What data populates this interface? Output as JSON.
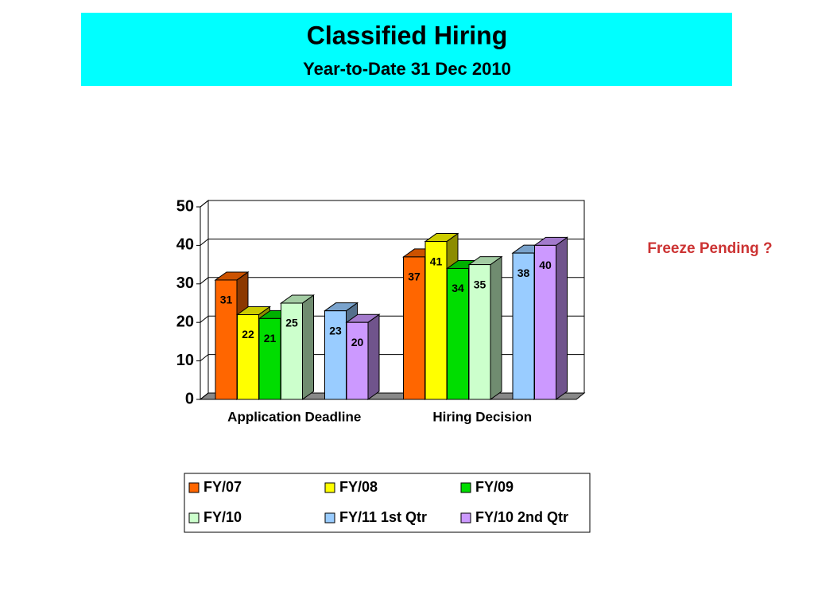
{
  "chart_data": {
    "type": "bar3d",
    "title": "Classified Hiring",
    "subtitle": "Year-to-Date 31 Dec 2010",
    "annotation": "Freeze Pending ?",
    "categories": [
      "Application Deadline",
      "Hiring Decision"
    ],
    "series": [
      {
        "name": "FY/07",
        "color": "#ff6600",
        "values": [
          31,
          37
        ]
      },
      {
        "name": "FY/08",
        "color": "#ffff00",
        "values": [
          22,
          41
        ]
      },
      {
        "name": "FY/09",
        "color": "#00dd00",
        "values": [
          21,
          34
        ]
      },
      {
        "name": "FY/10",
        "color": "#ccffcc",
        "values": [
          25,
          35
        ]
      },
      {
        "name": "FY/11 1st Qtr",
        "color": "#99ccff",
        "values": [
          23,
          38
        ]
      },
      {
        "name": "FY/10 2nd Qtr",
        "color": "#cc99ff",
        "values": [
          20,
          40
        ]
      }
    ],
    "ylim": [
      0,
      50
    ],
    "yticks": [
      0,
      10,
      20,
      30,
      40,
      50
    ],
    "grid": true
  }
}
